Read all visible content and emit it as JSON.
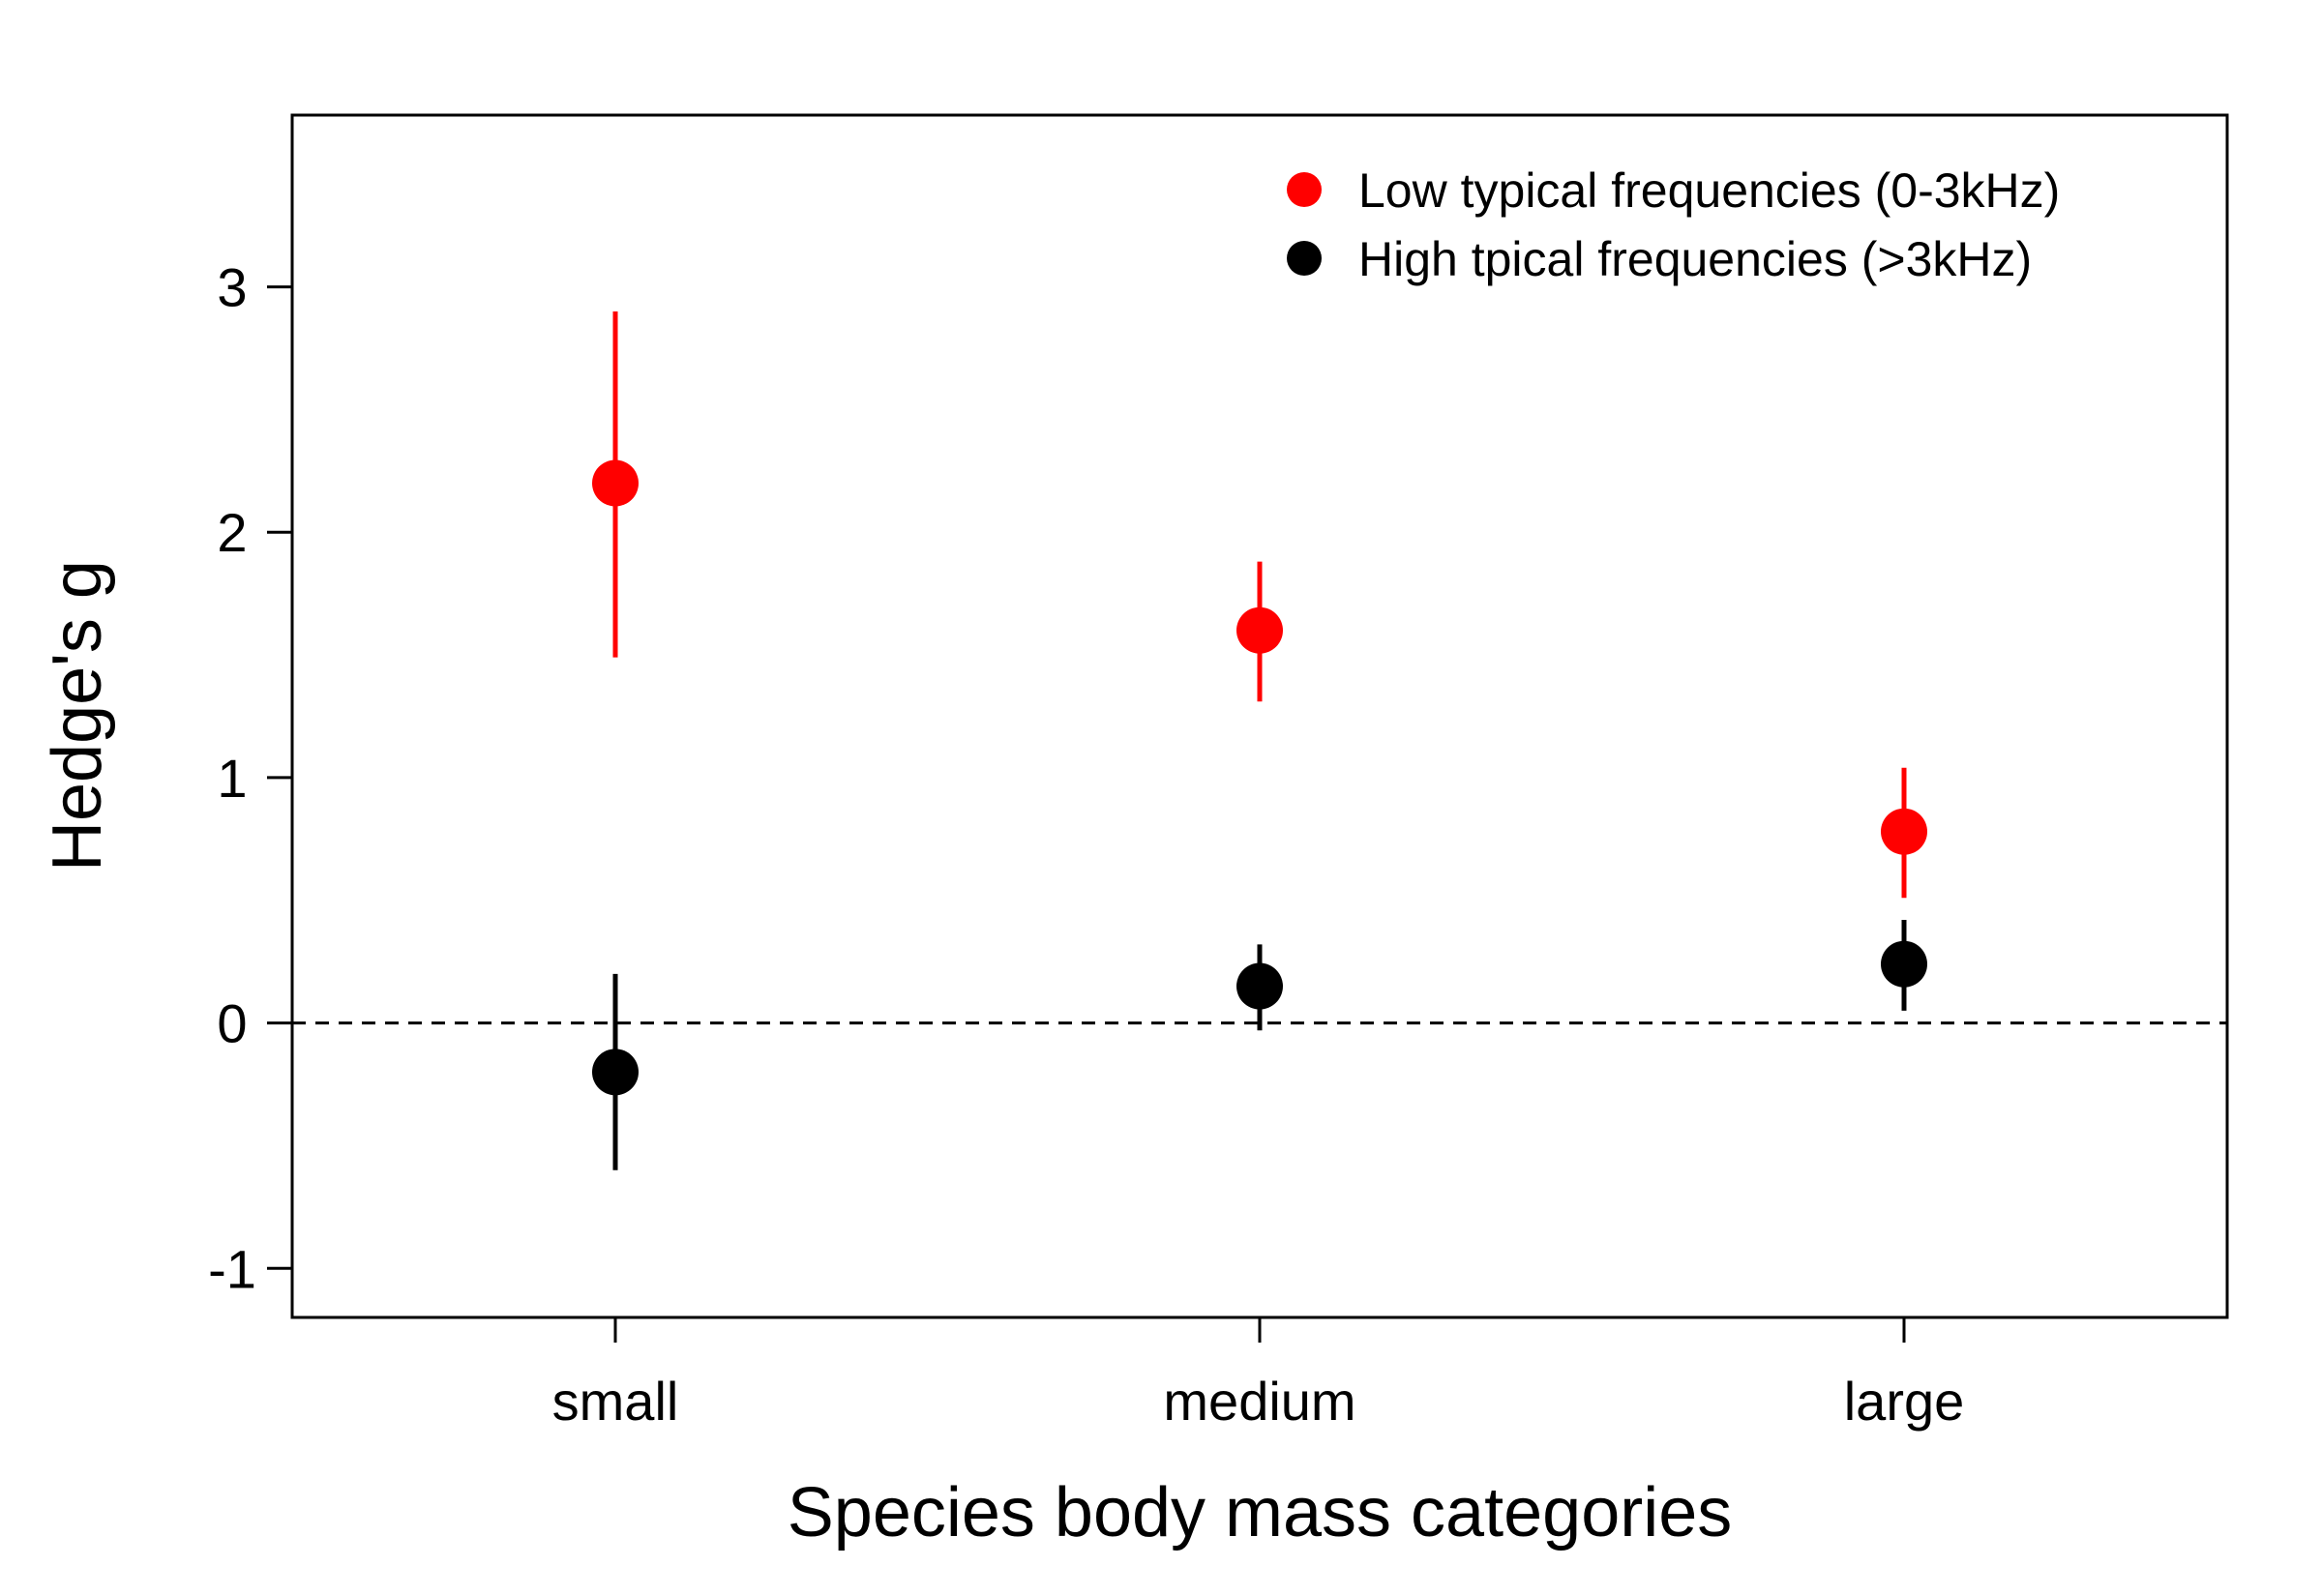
{
  "chart_data": {
    "type": "scatter",
    "xlabel": "Species body mass categories",
    "ylabel": "Hedge's g",
    "categories": [
      "small",
      "medium",
      "large"
    ],
    "ylim": [
      -1.2,
      3.7
    ],
    "yticks": [
      -1,
      0,
      1,
      2,
      3
    ],
    "ytick_labels": [
      "-1",
      "0",
      "1",
      "2",
      "3"
    ],
    "reference_line": {
      "y": 0,
      "style": "dashed"
    },
    "legend": {
      "placement": "top-right"
    },
    "grid": false,
    "series": [
      {
        "name": "Low typical frequencies (0-3kHz)",
        "color": "#ff0000",
        "values": [
          2.2,
          1.6,
          0.78
        ],
        "lower": [
          1.49,
          1.31,
          0.51
        ],
        "upper": [
          2.9,
          1.88,
          1.04
        ]
      },
      {
        "name": "High tpical frequencies (>3kHz)",
        "color": "#000000",
        "values": [
          -0.2,
          0.15,
          0.24
        ],
        "lower": [
          -0.6,
          -0.03,
          0.05
        ],
        "upper": [
          0.2,
          0.32,
          0.42
        ]
      }
    ]
  }
}
